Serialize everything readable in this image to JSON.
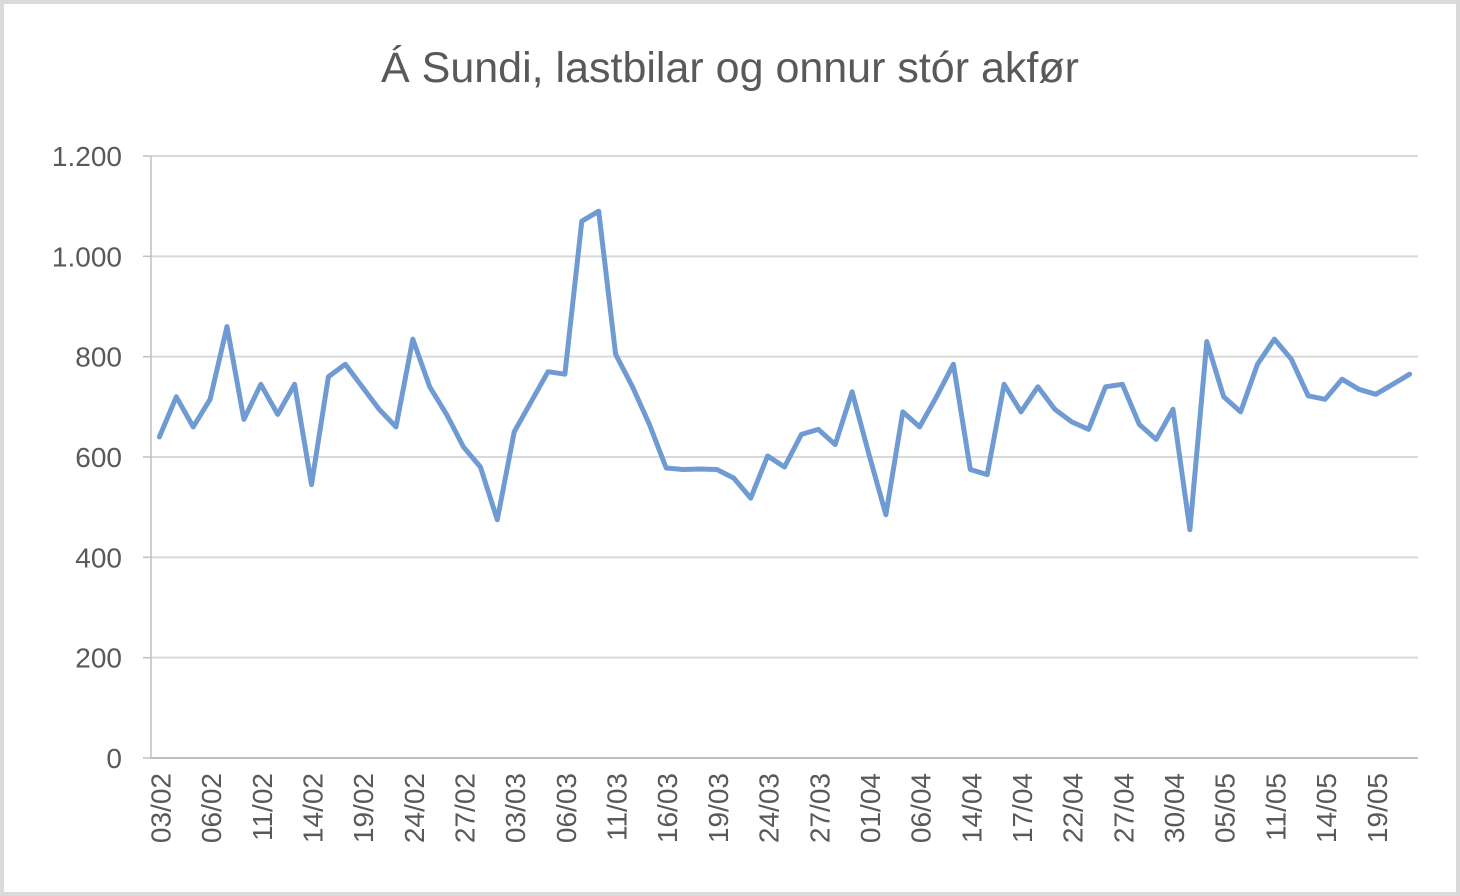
{
  "chart_data": {
    "type": "line",
    "title": "Á Sundi, lastbilar og onnur stór akfør",
    "xlabel": "",
    "ylabel": "",
    "ylim": [
      0,
      1200
    ],
    "y_tick_step": 200,
    "y_tick_labels": [
      "0",
      "200",
      "400",
      "600",
      "800",
      "1.000",
      "1.200"
    ],
    "x_tick_labels": [
      "03/02",
      "06/02",
      "11/02",
      "14/02",
      "19/02",
      "24/02",
      "27/02",
      "03/03",
      "06/03",
      "11/03",
      "16/03",
      "19/03",
      "24/03",
      "27/03",
      "01/04",
      "06/04",
      "14/04",
      "17/04",
      "22/04",
      "27/04",
      "30/04",
      "05/05",
      "11/05",
      "14/05",
      "19/05"
    ],
    "x_tick_every": 3,
    "x_tick_rotation_deg": -90,
    "grid": "horizontal",
    "legend_position": "none",
    "values": [
      640,
      720,
      660,
      715,
      860,
      675,
      745,
      685,
      745,
      545,
      760,
      785,
      740,
      695,
      660,
      835,
      740,
      685,
      620,
      580,
      475,
      650,
      710,
      770,
      765,
      1070,
      1090,
      805,
      740,
      665,
      578,
      575,
      576,
      575,
      558,
      518,
      602,
      580,
      645,
      655,
      625,
      730,
      605,
      485,
      690,
      660,
      720,
      785,
      575,
      565,
      745,
      690,
      740,
      695,
      670,
      655,
      740,
      745,
      665,
      635,
      695,
      455,
      830,
      720,
      690,
      785,
      835,
      795,
      722,
      715,
      755,
      735,
      725,
      745,
      765
    ],
    "colors": {
      "line": "#6f9bd2",
      "gridline": "#d9d9d9",
      "axis_line": "#bfbfbf",
      "tick_text": "#595959",
      "title_text": "#595959",
      "background": "#ffffff",
      "canvas_border": "#dadada"
    }
  }
}
